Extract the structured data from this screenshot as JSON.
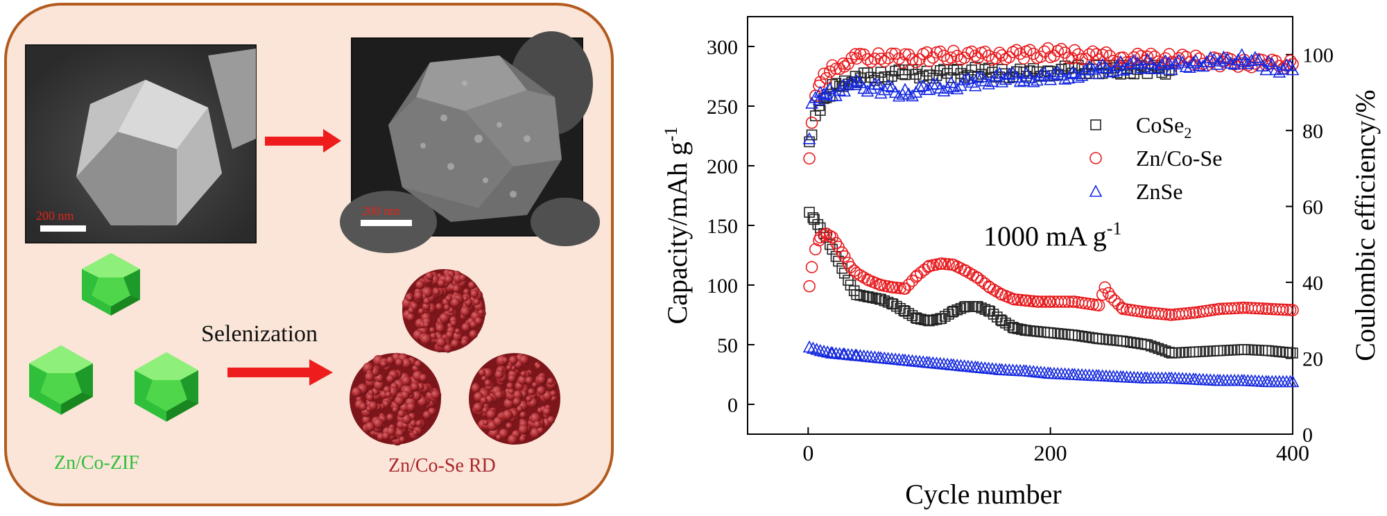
{
  "schematic": {
    "sem_left_scale": "200 nm",
    "sem_right_scale": "200 nm",
    "process_label": "Selenization",
    "precursor_label": "Zn/Co-ZIF",
    "product_label": "Zn/Co-Se RD",
    "colors": {
      "panel_bg": "#fbe5d8",
      "panel_border": "#b35a1f",
      "arrow": "#ee1c1c",
      "zif_green": "#2fbf3a",
      "rd_red": "#a8262c"
    }
  },
  "chart_data": {
    "type": "scatter",
    "xlabel": "Cycle number",
    "ylabel": "Capacity/mAh g",
    "ylabel_sup": "-1",
    "y2label": "Coulombic efficiency/%",
    "annotation": "1000 mA g",
    "annotation_sup": "-1",
    "xlim": [
      -50,
      400
    ],
    "ylim": [
      -25,
      325
    ],
    "y2lim": [
      0,
      110
    ],
    "x_ticks": [
      0,
      200,
      400
    ],
    "y_ticks": [
      0,
      50,
      100,
      150,
      200,
      250,
      300
    ],
    "y2_ticks": [
      0,
      20,
      40,
      60,
      80,
      100
    ],
    "grid": false,
    "legend_position": "upper-right",
    "legend": [
      {
        "label": "CoSe",
        "sub": "2",
        "marker": "square",
        "color": "#222222"
      },
      {
        "label": "Zn/Co-Se",
        "sub": "",
        "marker": "circle",
        "color": "#e8191c"
      },
      {
        "label": "ZnSe",
        "sub": "",
        "marker": "triangle",
        "color": "#1428e0"
      }
    ],
    "series": [
      {
        "name": "CoSe2",
        "kind": "capacity",
        "marker": "square",
        "color": "#222222",
        "x": [
          1,
          5,
          10,
          15,
          20,
          25,
          30,
          35,
          40,
          50,
          60,
          70,
          80,
          90,
          100,
          110,
          120,
          130,
          140,
          150,
          160,
          170,
          180,
          200,
          220,
          240,
          260,
          280,
          300,
          320,
          340,
          360,
          380,
          400
        ],
        "y": [
          161,
          155,
          148,
          140,
          130,
          120,
          110,
          100,
          92,
          90,
          88,
          84,
          78,
          72,
          70,
          72,
          78,
          82,
          82,
          78,
          70,
          64,
          62,
          60,
          58,
          55,
          53,
          50,
          43,
          44,
          45,
          46,
          45,
          43
        ]
      },
      {
        "name": "CoSe2",
        "kind": "efficiency",
        "marker": "square",
        "color": "#222222",
        "x": [
          1,
          3,
          6,
          10,
          15,
          20,
          30,
          40,
          60,
          80,
          100,
          120,
          140,
          160,
          180,
          200,
          220,
          240,
          260,
          280,
          300
        ],
        "y2": [
          76,
          80,
          84,
          86,
          89,
          91,
          93,
          94,
          94.5,
          95,
          95,
          95,
          95.5,
          95,
          95,
          95.5,
          96,
          96,
          96,
          96,
          96
        ]
      },
      {
        "name": "Zn/Co-Se",
        "kind": "capacity",
        "marker": "circle",
        "color": "#e8191c",
        "x": [
          1,
          3,
          6,
          10,
          15,
          20,
          25,
          30,
          35,
          40,
          50,
          60,
          70,
          80,
          90,
          100,
          110,
          120,
          130,
          140,
          150,
          160,
          170,
          180,
          190,
          200,
          220,
          240,
          245,
          250,
          260,
          280,
          300,
          320,
          340,
          360,
          380,
          400
        ],
        "y": [
          99,
          115,
          130,
          140,
          143,
          140,
          132,
          124,
          115,
          110,
          104,
          100,
          98,
          97,
          108,
          116,
          118,
          117,
          112,
          106,
          98,
          92,
          88,
          87,
          86,
          86,
          86,
          83,
          98,
          90,
          80,
          77,
          75,
          77,
          80,
          81,
          80,
          79
        ]
      },
      {
        "name": "Zn/Co-Se",
        "kind": "efficiency",
        "marker": "circle",
        "color": "#e8191c",
        "x": [
          1,
          3,
          6,
          10,
          15,
          20,
          30,
          40,
          60,
          80,
          100,
          120,
          140,
          160,
          180,
          200,
          220,
          240,
          260,
          280,
          300,
          320,
          340,
          360,
          380,
          400
        ],
        "y2": [
          73,
          82,
          88,
          92,
          95,
          96.5,
          98,
          99,
          99.5,
          99,
          99.5,
          100,
          99.5,
          100,
          100,
          100.5,
          100,
          99.5,
          99,
          99,
          99,
          98.5,
          98,
          98,
          97.5,
          97.5
        ]
      },
      {
        "name": "ZnSe",
        "kind": "capacity",
        "marker": "triangle",
        "color": "#1428e0",
        "x": [
          1,
          10,
          20,
          30,
          40,
          60,
          80,
          100,
          120,
          140,
          160,
          180,
          200,
          220,
          240,
          260,
          280,
          300,
          320,
          340,
          360,
          380,
          400
        ],
        "y": [
          48,
          45,
          43,
          42,
          41,
          39,
          37,
          35,
          33,
          31,
          29,
          28,
          26,
          25,
          24,
          23,
          22,
          22,
          21,
          20,
          20,
          19,
          19
        ]
      },
      {
        "name": "ZnSe",
        "kind": "efficiency",
        "marker": "triangle",
        "color": "#1428e0",
        "x": [
          1,
          3,
          6,
          10,
          15,
          20,
          30,
          40,
          60,
          80,
          100,
          120,
          140,
          160,
          180,
          200,
          220,
          240,
          260,
          280,
          300,
          320,
          340,
          360,
          380,
          400
        ],
        "y2": [
          79,
          86,
          88,
          89,
          90,
          90,
          91,
          92,
          91,
          90,
          91,
          92,
          93,
          94,
          94,
          94,
          95,
          96,
          97,
          97.5,
          97,
          98,
          98,
          99,
          97,
          96
        ]
      }
    ]
  }
}
